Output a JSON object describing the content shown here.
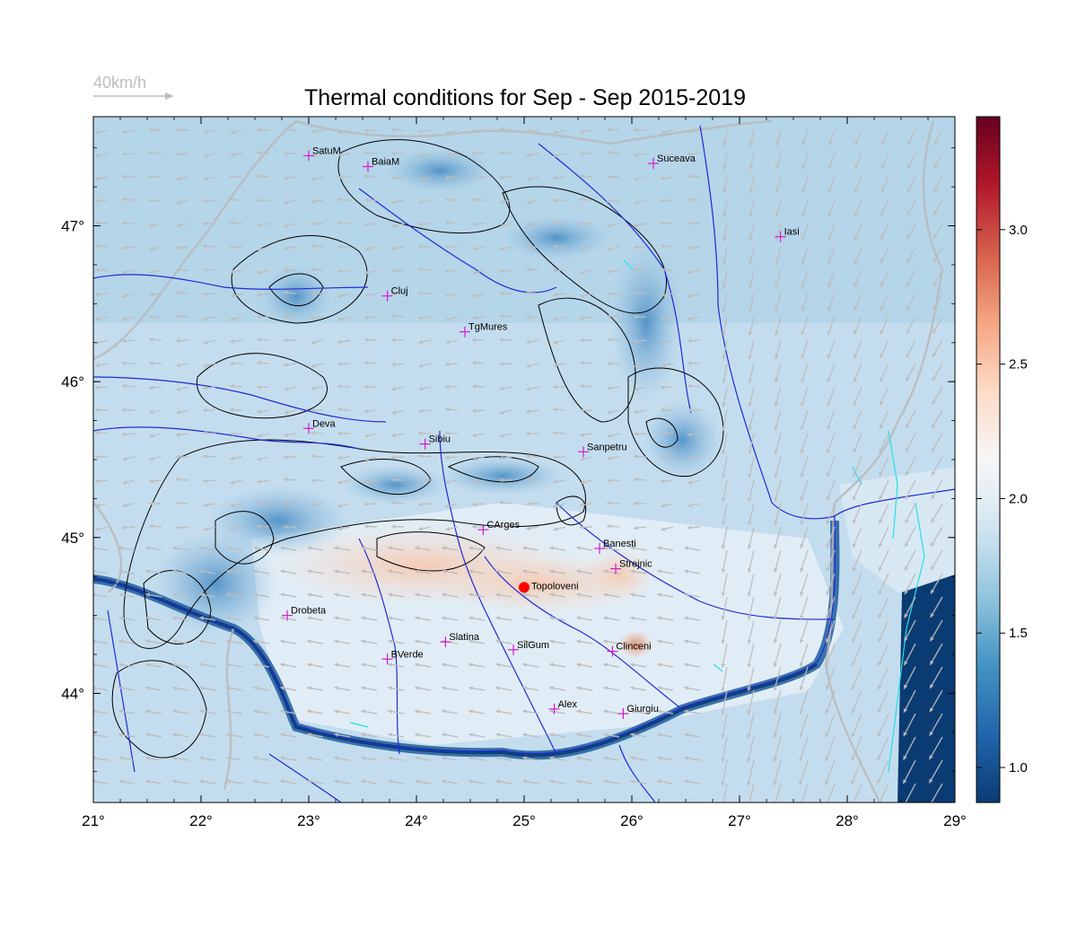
{
  "title": "Thermal conditions for Sep - Sep  2015-2019",
  "wind_legend": {
    "label": "40km/h",
    "color": "#bdbdbd"
  },
  "map": {
    "lon_range": [
      21.0,
      29.0
    ],
    "lat_range": [
      43.3,
      47.7
    ],
    "lon_ticks": [
      {
        "value": 21,
        "label": "21°"
      },
      {
        "value": 22,
        "label": "22°"
      },
      {
        "value": 23,
        "label": "23°"
      },
      {
        "value": 24,
        "label": "24°"
      },
      {
        "value": 25,
        "label": "25°"
      },
      {
        "value": 26,
        "label": "26°"
      },
      {
        "value": 27,
        "label": "27°"
      },
      {
        "value": 28,
        "label": "28°"
      },
      {
        "value": 29,
        "label": "29°"
      }
    ],
    "lat_ticks": [
      {
        "value": 44,
        "label": "44°"
      },
      {
        "value": 45,
        "label": "45°"
      },
      {
        "value": 46,
        "label": "46°"
      },
      {
        "value": 47,
        "label": "47°"
      }
    ],
    "colors": {
      "river": "#1f2bd6",
      "border": "#b8b8b8",
      "contour": "#000000",
      "marker": "#d21bd2",
      "lake": "#22e0e8"
    }
  },
  "colorbar": {
    "min": 0.87,
    "max": 3.42,
    "ticks": [
      {
        "value": 1.0,
        "label": "1.0"
      },
      {
        "value": 1.5,
        "label": "1.5"
      },
      {
        "value": 2.0,
        "label": "2.0"
      },
      {
        "value": 2.5,
        "label": "2.5"
      },
      {
        "value": 3.0,
        "label": "3.0"
      }
    ],
    "stops": [
      "#0b3b73",
      "#2166ac",
      "#4393c3",
      "#92c5de",
      "#d1e5f0",
      "#f7f7f7",
      "#fddbc7",
      "#f4a582",
      "#d6604d",
      "#b2182b",
      "#67001f"
    ]
  },
  "cities": [
    {
      "name": "SatuM",
      "lon": 23.0,
      "lat": 47.45
    },
    {
      "name": "BaiaM",
      "lon": 23.55,
      "lat": 47.38
    },
    {
      "name": "Suceava",
      "lon": 26.2,
      "lat": 47.4
    },
    {
      "name": "Iasi",
      "lon": 27.38,
      "lat": 46.93
    },
    {
      "name": "Cluj",
      "lon": 23.73,
      "lat": 46.55
    },
    {
      "name": "TgMures",
      "lon": 24.45,
      "lat": 46.32
    },
    {
      "name": "Deva",
      "lon": 23.0,
      "lat": 45.7
    },
    {
      "name": "Sibiu",
      "lon": 24.08,
      "lat": 45.6
    },
    {
      "name": "Sanpetru",
      "lon": 25.55,
      "lat": 45.55
    },
    {
      "name": "CArges",
      "lon": 24.62,
      "lat": 45.05
    },
    {
      "name": "Banesti",
      "lon": 25.7,
      "lat": 44.93
    },
    {
      "name": "Strejnic",
      "lon": 25.85,
      "lat": 44.8
    },
    {
      "name": "Drobeta",
      "lon": 22.8,
      "lat": 44.5
    },
    {
      "name": "Slatina",
      "lon": 24.27,
      "lat": 44.33
    },
    {
      "name": "SilGum",
      "lon": 24.9,
      "lat": 44.28
    },
    {
      "name": "Clinceni",
      "lon": 25.82,
      "lat": 44.27
    },
    {
      "name": "BVerde",
      "lon": 23.73,
      "lat": 44.22
    },
    {
      "name": "Alex",
      "lon": 25.28,
      "lat": 43.9
    },
    {
      "name": "Giurgiu",
      "lon": 25.92,
      "lat": 43.87
    }
  ],
  "highlight": {
    "name": "Topoloveni",
    "lon": 25.0,
    "lat": 44.68,
    "color": "#ff0000"
  }
}
